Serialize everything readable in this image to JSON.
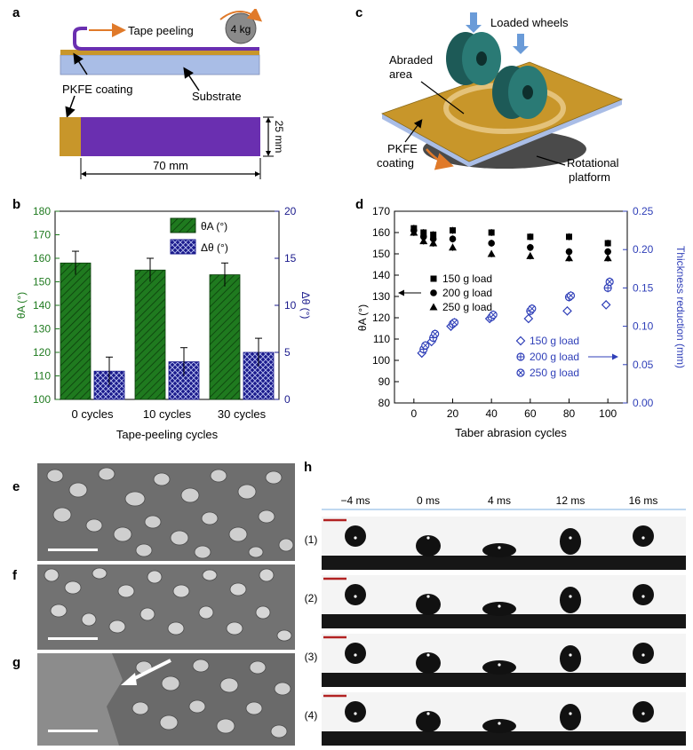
{
  "panel_letters": {
    "a": "a",
    "b": "b",
    "c": "c",
    "d": "d",
    "e": "e",
    "f": "f",
    "g": "g",
    "h": "h"
  },
  "panel_a": {
    "weight_label": "4 kg",
    "tape_peeling": "Tape peeling",
    "pkfe_coating": "PKFE coating",
    "substrate": "Substrate",
    "height_label": "25 mm",
    "width_label": "70 mm"
  },
  "panel_c": {
    "loaded_wheels": "Loaded wheels",
    "abraded_area_1": "Abraded",
    "abraded_area_2": "area",
    "pkfe_1": "PKFE",
    "pkfe_2": "coating",
    "rotational_1": "Rotational",
    "rotational_2": "platform"
  },
  "panel_h": {
    "time_labels": [
      "−4 ms",
      "0 ms",
      "4 ms",
      "12 ms",
      "16 ms"
    ],
    "row_labels": [
      "(1)",
      "(2)",
      "(3)",
      "(4)"
    ]
  },
  "colors": {
    "green": "#1f7a1f",
    "navy": "#1a1a8c",
    "blue": "#2f3fb8",
    "purple": "#6a2fb0",
    "gold": "#c8962a",
    "teal": "#1d5a57"
  },
  "chart_data": [
    {
      "type": "bar",
      "title": "",
      "xlabel": "Tape-peeling cycles",
      "ylabel_left": "θA (°)",
      "ylabel_right": "Δθ (°)",
      "categories": [
        "0 cycles",
        "10 cycles",
        "30 cycles"
      ],
      "ylim_left": [
        100,
        180
      ],
      "ylim_right": [
        0,
        20
      ],
      "yticks_left": [
        "100",
        "110",
        "120",
        "130",
        "140",
        "150",
        "160",
        "170",
        "180"
      ],
      "yticks_right": [
        "0",
        "5",
        "10",
        "15",
        "20"
      ],
      "series": [
        {
          "name": "θA (°)",
          "axis": "left",
          "values": [
            158,
            155,
            153
          ],
          "errors": [
            5,
            5,
            5
          ]
        },
        {
          "name": "Δθ (°)",
          "axis": "right",
          "values": [
            3,
            4,
            5
          ],
          "errors": [
            1.5,
            1.5,
            1.5
          ]
        }
      ],
      "legend": [
        "θA (°)",
        "Δθ (°)"
      ]
    },
    {
      "type": "scatter",
      "title": "",
      "xlabel": "Taber abrasion cycles",
      "ylabel_left": "θA (°)",
      "ylabel_right": "Thickness reduction (mm)",
      "xlim": [
        -10,
        110
      ],
      "ylim_left": [
        80,
        170
      ],
      "ylim_right": [
        0,
        0.25
      ],
      "xticks": [
        "0",
        "20",
        "40",
        "60",
        "80",
        "100"
      ],
      "yticks_left": [
        "80",
        "90",
        "100",
        "110",
        "120",
        "130",
        "140",
        "150",
        "160",
        "170"
      ],
      "yticks_right": [
        "0.00",
        "0.05",
        "0.10",
        "0.15",
        "0.20",
        "0.25"
      ],
      "series": [
        {
          "name": "150 g load",
          "axis": "left",
          "marker": "square",
          "x": [
            0,
            5,
            10,
            20,
            40,
            60,
            80,
            100
          ],
          "y": [
            162,
            160,
            159,
            161,
            160,
            158,
            158,
            155
          ]
        },
        {
          "name": "200 g load",
          "axis": "left",
          "marker": "circle",
          "x": [
            0,
            5,
            10,
            20,
            40,
            60,
            80,
            100
          ],
          "y": [
            161,
            158,
            157,
            157,
            155,
            153,
            151,
            151
          ]
        },
        {
          "name": "250 g load",
          "axis": "left",
          "marker": "triangle",
          "x": [
            0,
            5,
            10,
            20,
            40,
            60,
            80,
            100
          ],
          "y": [
            160,
            156,
            155,
            153,
            150,
            149,
            148,
            148
          ]
        },
        {
          "name": "150 g load",
          "axis": "right",
          "marker": "diamond-open",
          "x": [
            5,
            10,
            20,
            40,
            60,
            80,
            100
          ],
          "y": [
            0.065,
            0.08,
            0.1,
            0.11,
            0.11,
            0.12,
            0.128
          ]
        },
        {
          "name": "200 g load",
          "axis": "right",
          "marker": "circle-plus",
          "x": [
            5,
            10,
            20,
            40,
            60,
            80,
            100
          ],
          "y": [
            0.07,
            0.085,
            0.103,
            0.112,
            0.12,
            0.138,
            0.15
          ]
        },
        {
          "name": "250 g load",
          "axis": "right",
          "marker": "circle-x",
          "x": [
            5,
            10,
            20,
            40,
            60,
            80,
            100
          ],
          "y": [
            0.075,
            0.09,
            0.105,
            0.115,
            0.123,
            0.14,
            0.158
          ]
        }
      ],
      "legend_left": [
        "150 g load",
        "200 g load",
        "250 g load"
      ],
      "legend_right": [
        "150 g load",
        "200 g load",
        "250 g load"
      ]
    }
  ]
}
